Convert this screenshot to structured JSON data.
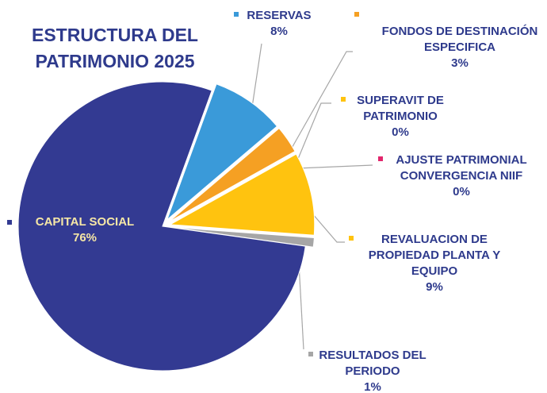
{
  "chart_data": {
    "type": "pie",
    "title": "ESTRUCTURA DEL PATRIMONIO 2025",
    "categories": [
      "RESERVAS",
      "FONDOS DE DESTINACIÓN ESPECIFICA",
      "SUPERAVIT DE PATRIMONIO",
      "AJUSTE PATRIMONIAL CONVERGENCIA NIIF",
      "REVALUACION DE PROPIEDAD PLANTA Y EQUIPO",
      "RESULTADOS DEL PERIODO",
      "CAPITAL SOCIAL"
    ],
    "values": [
      8,
      3,
      0,
      0,
      9,
      1,
      76
    ],
    "value_labels": [
      "8%",
      "3%",
      "0%",
      "0%",
      "9%",
      "1%",
      "76%"
    ],
    "colors": [
      "#3a9ad9",
      "#f5a023",
      "#ffc30f",
      "#e2266c",
      "#ffc30f",
      "#a6a6a6",
      "#333a92"
    ]
  }
}
